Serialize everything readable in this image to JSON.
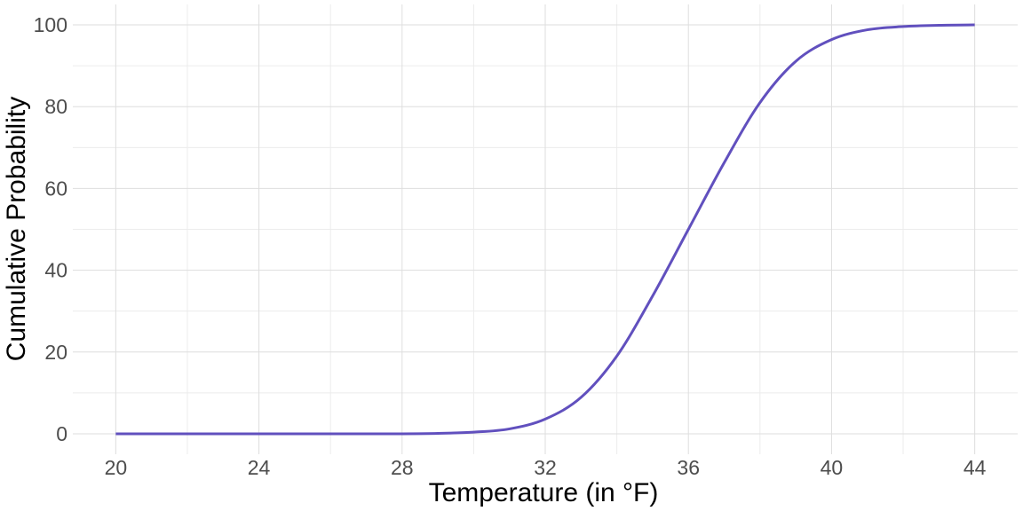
{
  "chart_data": {
    "type": "line",
    "title": "",
    "xlabel": "Temperature (in °F)",
    "ylabel": "Cumulative Probability",
    "xlim": [
      18.8,
      45.2
    ],
    "ylim": [
      -5,
      105
    ],
    "x_ticks": [
      20,
      24,
      28,
      32,
      36,
      40,
      44
    ],
    "x_tick_labels": [
      "20",
      "24",
      "28",
      "32",
      "36",
      "40",
      "44"
    ],
    "x_minor_ticks": [
      22,
      26,
      30,
      34,
      38,
      42
    ],
    "y_ticks": [
      0,
      20,
      40,
      60,
      80,
      100
    ],
    "y_tick_labels": [
      "0",
      "20",
      "40",
      "60",
      "80",
      "100"
    ],
    "y_minor_ticks": [
      10,
      30,
      50,
      70,
      90
    ],
    "grid": true,
    "legend": "none",
    "series": [
      {
        "name": "Cumulative Probability",
        "color": "#6150be",
        "x": [
          20,
          21,
          22,
          23,
          24,
          25,
          26,
          27,
          28,
          29,
          30,
          31,
          32,
          33,
          34,
          35,
          36,
          37,
          38,
          39,
          40,
          41,
          42,
          43,
          44
        ],
        "y": [
          0,
          0,
          0,
          0,
          0,
          0,
          0,
          0,
          0,
          0.1,
          0.4,
          1.2,
          3.6,
          8.9,
          19.0,
          33.7,
          50.0,
          66.3,
          81.0,
          91.1,
          96.4,
          98.8,
          99.6,
          99.9,
          100
        ]
      }
    ]
  }
}
